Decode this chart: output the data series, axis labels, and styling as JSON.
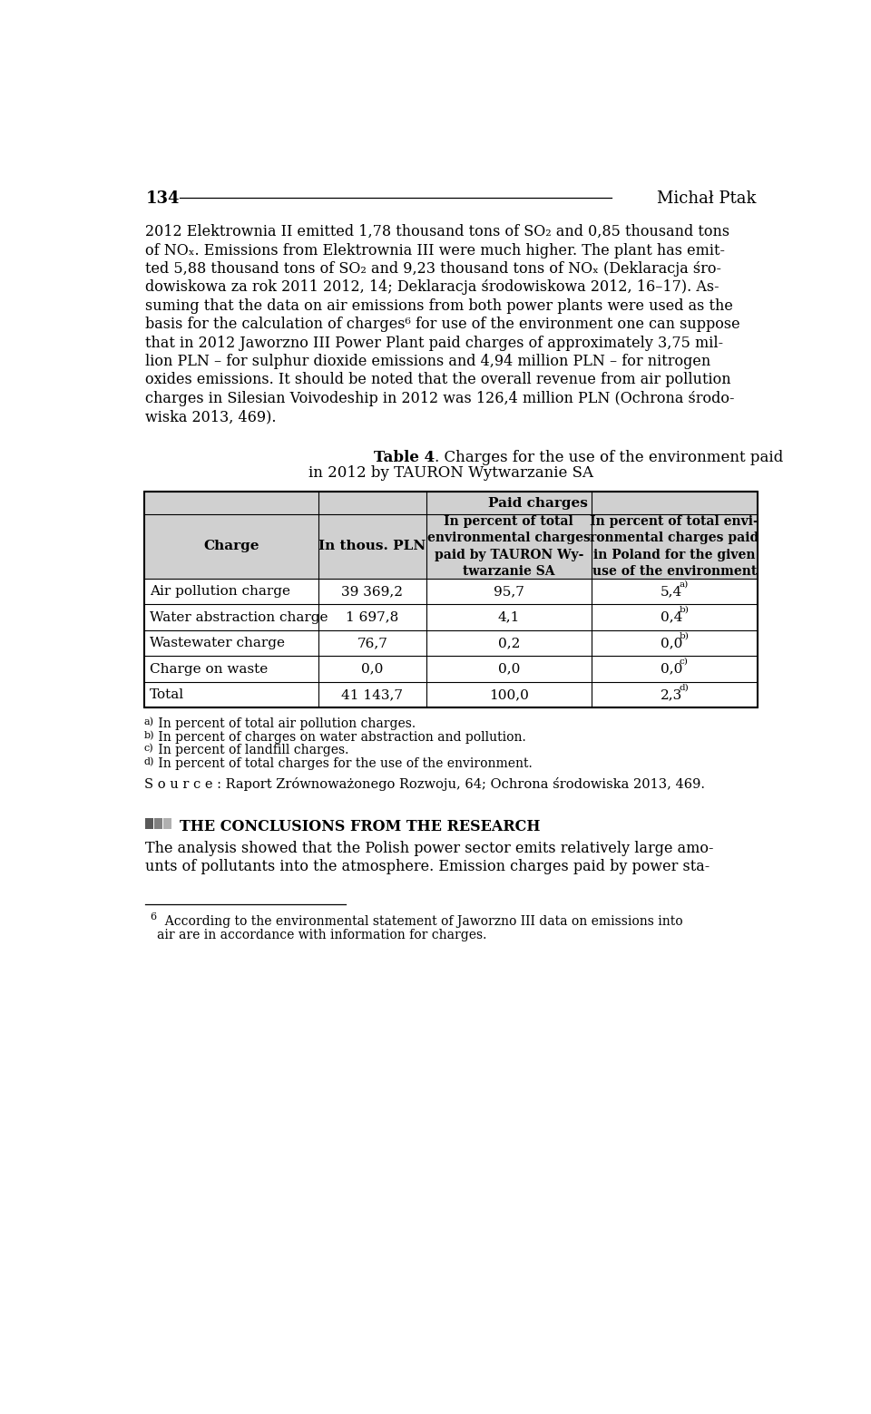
{
  "page_number": "134",
  "author": "Michał Ptak",
  "bg_color": "#ffffff",
  "text_color": "#000000",
  "body_text": [
    "2012 Elektrownia II emitted 1,78 thousand tons of SO₂ and 0,85 thousand tons",
    "of NOₓ. Emissions from Elektrownia III were much higher. The plant has emit-",
    "ted 5,88 thousand tons of SO₂ and 9,23 thousand tons of NOₓ (Deklaracja śro-",
    "dowiskowa za rok 2011 2012, 14; Deklaracja środowiskowa 2012, 16–17). As-",
    "suming that the data on air emissions from both power plants were used as the",
    "basis for the calculation of charges⁶ for use of the environment one can suppose",
    "that in 2012 Jaworzno III Power Plant paid charges of approximately 3,75 mil-",
    "lion PLN – for sulphur dioxide emissions and 4,94 million PLN – for nitrogen",
    "oxides emissions. It should be noted that the overall revenue from air pollution",
    "charges in Silesian Voivodeship in 2012 was 126,4 million PLN (Ochrona środo-",
    "wiska 2013, 469)."
  ],
  "table_title_bold": "Table 4",
  "table_title_rest": ". Charges for the use of the environment paid",
  "table_title_line2": "in 2012 by TAURON Wytwarzanie SA",
  "table_header_row1": "Paid charges",
  "table_col0_header": "Charge",
  "table_col1_header": "In thous. PLN",
  "table_col2_header": "In percent of total\nenvironmental charges\npaid by TAURON Wy-\ntwarzanie SA",
  "table_col3_header": "In percent of total envi-\nronmental charges paid\nin Poland for the given\nuse of the environment",
  "table_rows": [
    [
      "Air pollution charge",
      "39 369,2",
      "95,7",
      "5,4",
      "a)"
    ],
    [
      "Water abstraction charge",
      "1 697,8",
      "4,1",
      "0,4",
      "b)"
    ],
    [
      "Wastewater charge",
      "76,7",
      "0,2",
      "0,0",
      "b)"
    ],
    [
      "Charge on waste",
      "0,0",
      "0,0",
      "0,0",
      "c)"
    ],
    [
      "Total",
      "41 143,7",
      "100,0",
      "2,3",
      "d)"
    ]
  ],
  "footnotes": [
    "a) In percent of total air pollution charges.",
    "b) In percent of charges on water abstraction and pollution.",
    "c) In percent of landfill charges.",
    "d) In percent of total charges for the use of the environment."
  ],
  "footnote_superscripts": [
    "a)",
    "b)",
    "c)",
    "d)"
  ],
  "source_line": "S o u r c e : Raport Zrównoważonego Rozwoju, 64; Ochrona środowiska 2013, 469.",
  "section_header": "THE CONCLUSIONS FROM THE RESEARCH",
  "section_text": [
    "The analysis showed that the Polish power sector emits relatively large amo-",
    "unts of pollutants into the atmosphere. Emission charges paid by power sta-"
  ],
  "footnote_bottom_sup": "6",
  "footnote_bottom_line1": "  According to the environmental statement of Jaworzno III data on emissions into",
  "footnote_bottom_line2": "air are in accordance with information for charges.",
  "header_bg": "#d0d0d0",
  "box_colors": [
    "#595959",
    "#808080",
    "#b0b0b0"
  ]
}
